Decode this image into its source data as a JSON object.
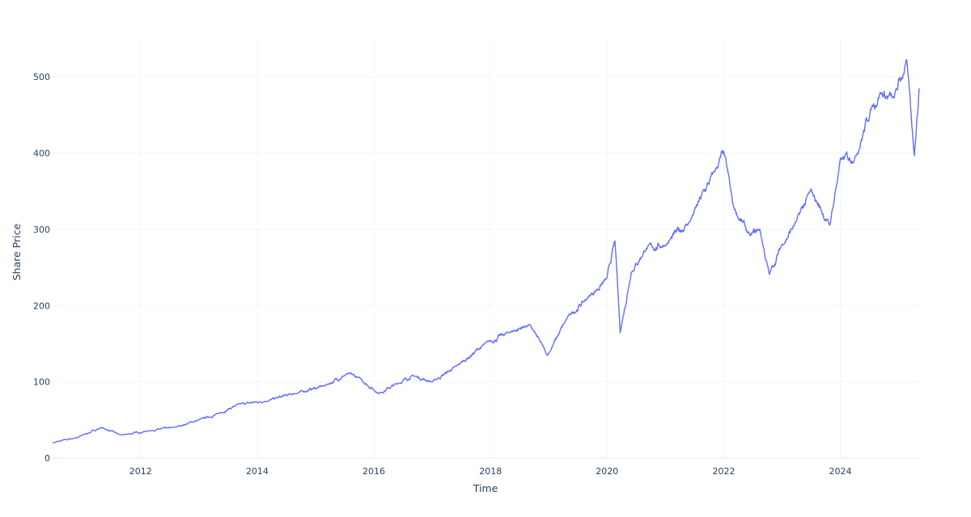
{
  "chart_data": {
    "type": "line",
    "title": "",
    "xlabel": "Time",
    "ylabel": "Share Price",
    "xlim": [
      "2010-06-29",
      "2025-05-09"
    ],
    "ylim": [
      0,
      550
    ],
    "x_ticks": [
      "2012",
      "2014",
      "2016",
      "2018",
      "2020",
      "2022",
      "2024"
    ],
    "y_ticks": [
      0,
      100,
      200,
      300,
      400,
      500
    ],
    "grid": true,
    "legend": "none",
    "series": [
      {
        "color": "#636efa",
        "x": [
          "2010-06-29",
          "2010-12-01",
          "2011-05-01",
          "2011-09-01",
          "2012-03-01",
          "2012-08-01",
          "2013-01-01",
          "2013-05-01",
          "2013-09-01",
          "2014-03-01",
          "2014-09-01",
          "2015-03-01",
          "2015-07-15",
          "2015-10-01",
          "2016-02-01",
          "2016-06-01",
          "2016-09-01",
          "2017-01-01",
          "2017-06-01",
          "2017-12-01",
          "2018-05-01",
          "2018-09-01",
          "2018-12-24",
          "2019-05-01",
          "2019-09-01",
          "2019-12-31",
          "2020-02-19",
          "2020-03-23",
          "2020-06-01",
          "2020-09-01",
          "2020-12-31",
          "2021-06-01",
          "2021-11-15",
          "2022-01-01",
          "2022-03-01",
          "2022-06-15",
          "2022-08-15",
          "2022-10-13",
          "2023-01-01",
          "2023-04-01",
          "2023-07-01",
          "2023-10-27",
          "2024-01-01",
          "2024-04-01",
          "2024-07-15",
          "2024-09-06",
          "2024-12-01",
          "2025-02-19",
          "2025-04-08",
          "2025-05-09"
        ],
        "y": [
          20,
          27,
          40,
          30,
          36,
          40,
          50,
          58,
          70,
          75,
          85,
          95,
          110,
          105,
          85,
          98,
          108,
          100,
          120,
          150,
          165,
          175,
          135,
          185,
          210,
          235,
          285,
          165,
          245,
          275,
          280,
          310,
          380,
          400,
          330,
          290,
          300,
          240,
          280,
          310,
          350,
          305,
          390,
          395,
          460,
          480,
          470,
          520,
          400,
          485
        ]
      }
    ]
  }
}
